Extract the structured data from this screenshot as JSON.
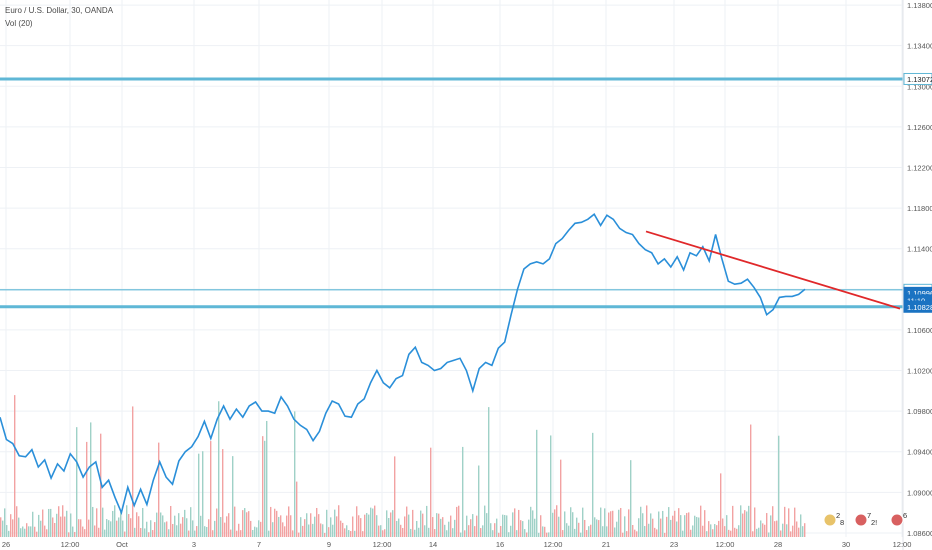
{
  "header": {
    "title": "Euro / U.S. Dollar, 30, OANDA",
    "indicator": "Vol (20)"
  },
  "colors": {
    "price_line": "#2a8fd9",
    "hline": "#5fb7d6",
    "trendline": "#e0282a",
    "badge": "#1b73c2",
    "vol_up": "#9fd1c7",
    "vol_down": "#f2a2a2",
    "grid": "#eef1f5"
  },
  "chart_data": {
    "type": "line",
    "y_ticks": [
      "1.13800",
      "1.13400",
      "1.13000",
      "1.12600",
      "1.12200",
      "1.11800",
      "1.11400",
      "1.11000",
      "1.10600",
      "1.10200",
      "1.09800",
      "1.09400",
      "1.09000",
      "1.08600"
    ],
    "ylim": [
      1.0856,
      1.1385
    ],
    "x_ticks": [
      "26",
      "12:00",
      "Oct",
      "3",
      "7",
      "9",
      "12:00",
      "14",
      "16",
      "12:00",
      "21",
      "23",
      "12:00",
      "28",
      "30",
      "12:00"
    ],
    "series": [
      {
        "values": [
          1.0974,
          1.0952,
          1.0948,
          1.0936,
          1.0935,
          1.0942,
          1.0925,
          1.0932,
          1.0914,
          1.0928,
          1.0921,
          1.0938,
          1.093,
          1.0915,
          1.0925,
          1.093,
          1.0905,
          1.0912,
          1.0895,
          1.088,
          1.0905,
          1.0887,
          1.0903,
          1.0888,
          1.0912,
          1.093,
          1.0915,
          1.0908,
          1.0931,
          1.094,
          1.0945,
          1.0955,
          1.097,
          1.0953,
          1.0972,
          1.0985,
          1.0972,
          1.0982,
          1.0974,
          1.0985,
          1.0989,
          1.098,
          1.098,
          1.0978,
          1.0994,
          1.0985,
          1.0972,
          1.0966,
          1.0962,
          1.0951,
          1.096,
          1.0978,
          1.099,
          1.0987,
          1.0975,
          1.0974,
          1.0987,
          1.0992,
          1.1008,
          1.102,
          1.1008,
          1.1003,
          1.1012,
          1.1015,
          1.1036,
          1.1043,
          1.1028,
          1.1025,
          1.102,
          1.1022,
          1.1028,
          1.103,
          1.1032,
          1.102,
          1.1,
          1.1022,
          1.1028,
          1.1025,
          1.1042,
          1.1048,
          1.1075,
          1.11,
          1.112,
          1.1125,
          1.1127,
          1.1125,
          1.113,
          1.1145,
          1.115,
          1.1158,
          1.1165,
          1.1166,
          1.1169,
          1.1174,
          1.1163,
          1.1173,
          1.1169,
          1.116,
          1.1156,
          1.1154,
          1.1145,
          1.1139,
          1.1136,
          1.1125,
          1.113,
          1.1122,
          1.1132,
          1.1119,
          1.1136,
          1.1133,
          1.1142,
          1.1128,
          1.1154,
          1.113,
          1.1108,
          1.1105,
          1.1106,
          1.111,
          1.1102,
          1.1092,
          1.1075,
          1.108,
          1.1092,
          1.1093,
          1.1093,
          1.1095,
          1.11
        ],
        "x_range": [
          "25 Sep",
          "29 Oct"
        ]
      }
    ],
    "horizontal_lines": [
      1.13072,
      1.10995,
      1.10828
    ],
    "trendline": {
      "from": [
        1.1157,
        "22 Oct"
      ],
      "to": [
        1.1081,
        "31 Oct 12:00"
      ]
    },
    "price_labels": [
      {
        "value": "1.13072",
        "price": 1.13072
      },
      {
        "value": "1.10995",
        "price": 1.10995
      },
      {
        "value": "1.10996",
        "price": 1.10965
      },
      {
        "value": "11:10",
        "price": 1.1089
      },
      {
        "value": "1.10828",
        "price": 1.10828
      }
    ],
    "volume_up_color": "#9fd1c7",
    "volume_down_color": "#f2a2a2"
  },
  "events": [
    {
      "label": "2",
      "label2": "8"
    },
    {
      "label": "7",
      "label2": "2!"
    },
    {
      "label": "6",
      "label2": ""
    }
  ]
}
